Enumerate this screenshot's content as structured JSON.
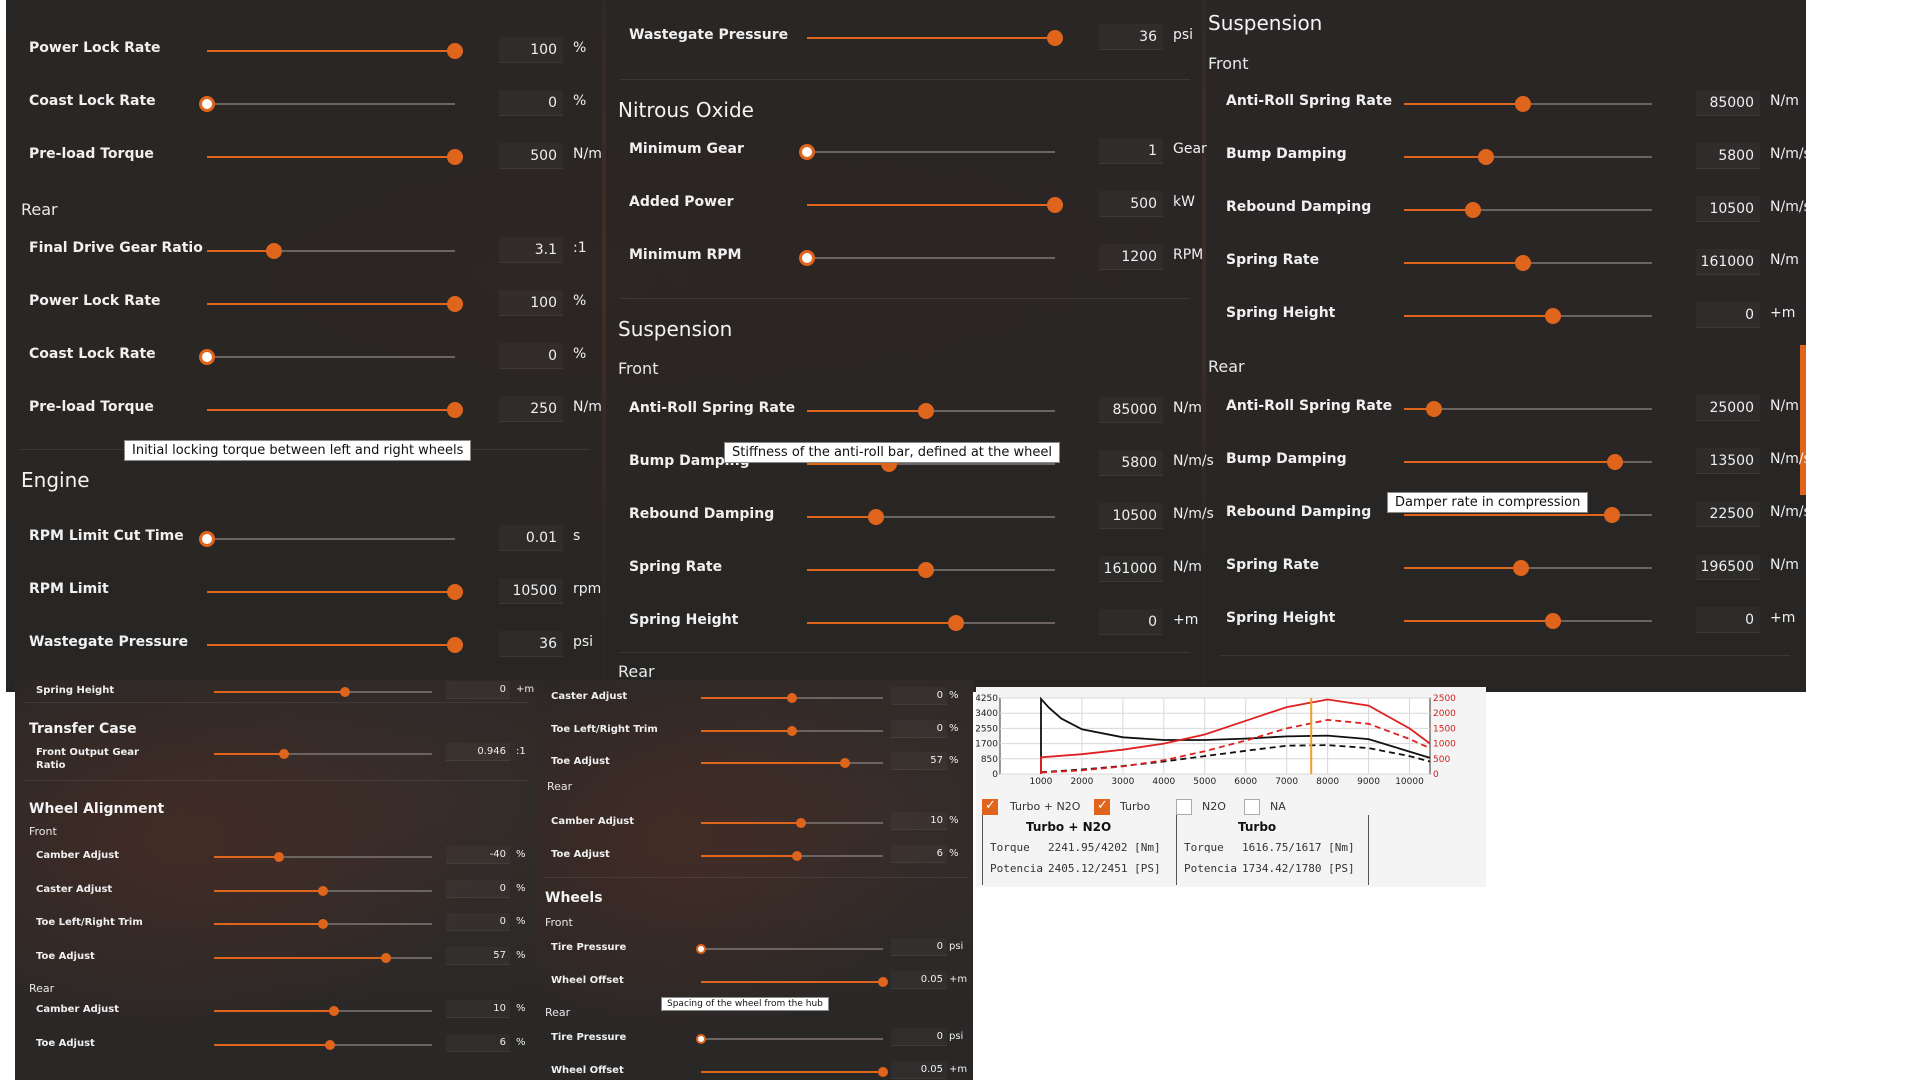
{
  "panel_top": {
    "col1": {
      "rows_a": [
        {
          "label": "Power Lock Rate",
          "value": "100",
          "unit": "%",
          "frac": 1.0
        },
        {
          "label": "Coast Lock Rate",
          "value": "0",
          "unit": "%",
          "frac": 0.0
        },
        {
          "label": "Pre-load Torque",
          "value": "500",
          "unit": "N/m",
          "frac": 1.0
        }
      ],
      "rear_label": "Rear",
      "rows_b": [
        {
          "label": "Final Drive Gear Ratio",
          "value": "3.1",
          "unit": ":1",
          "frac": 0.27
        },
        {
          "label": "Power Lock Rate",
          "value": "100",
          "unit": "%",
          "frac": 1.0
        },
        {
          "label": "Coast Lock Rate",
          "value": "0",
          "unit": "%",
          "frac": 0.0
        },
        {
          "label": "Pre-load Torque",
          "value": "250",
          "unit": "N/m",
          "frac": 1.0
        }
      ],
      "tooltip": "Initial locking torque between left and right wheels",
      "engine_title": "Engine",
      "rows_c": [
        {
          "label": "RPM Limit Cut Time",
          "value": "0.01",
          "unit": "s",
          "frac": 0.0
        },
        {
          "label": "RPM Limit",
          "value": "10500",
          "unit": "rpm",
          "frac": 1.0
        },
        {
          "label": "Wastegate Pressure",
          "value": "36",
          "unit": "psi",
          "frac": 1.0
        }
      ]
    },
    "col2": {
      "row_top": {
        "label": "Wastegate Pressure",
        "value": "36",
        "unit": "psi",
        "frac": 1.0
      },
      "nitrous_title": "Nitrous Oxide",
      "rows_n": [
        {
          "label": "Minimum Gear",
          "value": "1",
          "unit": "Gear",
          "frac": 0.0
        },
        {
          "label": "Added Power",
          "value": "500",
          "unit": "kW",
          "frac": 1.0
        },
        {
          "label": "Minimum RPM",
          "value": "1200",
          "unit": "RPM",
          "frac": 0.0
        }
      ],
      "suspension_title": "Suspension",
      "front_label": "Front",
      "rows_s": [
        {
          "label": "Anti-Roll Spring Rate",
          "value": "85000",
          "unit": "N/m",
          "frac": 0.48
        },
        {
          "label": "Bump Damping",
          "value": "5800",
          "unit": "N/m/s",
          "frac": 0.33
        },
        {
          "label": "Rebound Damping",
          "value": "10500",
          "unit": "N/m/s",
          "frac": 0.28
        },
        {
          "label": "Spring Rate",
          "value": "161000",
          "unit": "N/m",
          "frac": 0.48
        },
        {
          "label": "Spring Height",
          "value": "0",
          "unit": "+m",
          "frac": 0.6
        }
      ],
      "tooltip": "Stiffness of the anti-roll bar, defined at the wheel",
      "rear_label": "Rear"
    },
    "col3": {
      "suspension_title": "Suspension",
      "front_label": "Front",
      "rows_f": [
        {
          "label": "Anti-Roll Spring Rate",
          "value": "85000",
          "unit": "N/m",
          "frac": 0.48
        },
        {
          "label": "Bump Damping",
          "value": "5800",
          "unit": "N/m/s",
          "frac": 0.33
        },
        {
          "label": "Rebound Damping",
          "value": "10500",
          "unit": "N/m/s",
          "frac": 0.28
        },
        {
          "label": "Spring Rate",
          "value": "161000",
          "unit": "N/m",
          "frac": 0.48
        },
        {
          "label": "Spring Height",
          "value": "0",
          "unit": "+m",
          "frac": 0.6
        }
      ],
      "rear_label": "Rear",
      "rows_r": [
        {
          "label": "Anti-Roll Spring Rate",
          "value": "25000",
          "unit": "N/m",
          "frac": 0.12
        },
        {
          "label": "Bump Damping",
          "value": "13500",
          "unit": "N/m/s",
          "frac": 0.85
        },
        {
          "label": "Rebound Damping",
          "value": "22500",
          "unit": "N/m/s",
          "frac": 0.84
        },
        {
          "label": "Spring Rate",
          "value": "196500",
          "unit": "N/m",
          "frac": 0.47
        },
        {
          "label": "Spring Height",
          "value": "0",
          "unit": "+m",
          "frac": 0.6
        }
      ],
      "tooltip": "Damper rate in compression"
    }
  },
  "panel_left": {
    "row_top": {
      "label": "Spring Height",
      "value": "0",
      "unit": "+m",
      "frac": 0.6
    },
    "transfer_title": "Transfer Case",
    "row_tc": {
      "label": "Front Output Gear",
      "label2": "Ratio",
      "value": "0.946",
      "unit": ":1",
      "frac": 0.32
    },
    "wheel_title": "Wheel Alignment",
    "front_label": "Front",
    "rows_f": [
      {
        "label": "Camber Adjust",
        "value": "-40",
        "unit": "%",
        "frac": 0.3
      },
      {
        "label": "Caster Adjust",
        "value": "0",
        "unit": "%",
        "frac": 0.5
      },
      {
        "label": "Toe Left/Right Trim",
        "value": "0",
        "unit": "%",
        "frac": 0.5
      },
      {
        "label": "Toe Adjust",
        "value": "57",
        "unit": "%",
        "frac": 0.79
      }
    ],
    "rear_label": "Rear",
    "rows_r": [
      {
        "label": "Camber Adjust",
        "value": "10",
        "unit": "%",
        "frac": 0.55
      },
      {
        "label": "Toe Adjust",
        "value": "6",
        "unit": "%",
        "frac": 0.53
      }
    ]
  },
  "panel_mid": {
    "rows_a": [
      {
        "label": "Caster Adjust",
        "value": "0",
        "unit": "%",
        "frac": 0.5
      },
      {
        "label": "Toe Left/Right Trim",
        "value": "0",
        "unit": "%",
        "frac": 0.5
      },
      {
        "label": "Toe Adjust",
        "value": "57",
        "unit": "%",
        "frac": 0.79
      }
    ],
    "rear_label": "Rear",
    "rows_b": [
      {
        "label": "Camber Adjust",
        "value": "10",
        "unit": "%",
        "frac": 0.55
      },
      {
        "label": "Toe Adjust",
        "value": "6",
        "unit": "%",
        "frac": 0.53
      }
    ],
    "wheels_title": "Wheels",
    "front_label": "Front",
    "rows_f": [
      {
        "label": "Tire Pressure",
        "value": "0",
        "unit": "psi",
        "frac": 0.0
      },
      {
        "label": "Wheel Offset",
        "value": "0.05",
        "unit": "+m",
        "frac": 1.0
      }
    ],
    "tooltip": "Spacing of the wheel from the hub",
    "rear_label2": "Rear",
    "rows_r": [
      {
        "label": "Tire Pressure",
        "value": "0",
        "unit": "psi",
        "frac": 0.0
      },
      {
        "label": "Wheel Offset",
        "value": "0.05",
        "unit": "+m",
        "frac": 1.0
      }
    ]
  },
  "dyno": {
    "checkboxes": [
      {
        "label": "Turbo + N2O",
        "checked": true
      },
      {
        "label": "Turbo",
        "checked": true
      },
      {
        "label": "N2O",
        "checked": false
      },
      {
        "label": "NA",
        "checked": false
      }
    ],
    "stats": [
      {
        "title": "Turbo + N2O",
        "torque_label": "Torque",
        "torque": "2241.95/4202 [Nm]",
        "power_label": "Potencia",
        "power": "2405.12/2451 [PS]"
      },
      {
        "title": "Turbo",
        "torque_label": "Torque",
        "torque": "1616.75/1617 [Nm]",
        "power_label": "Potencia",
        "power": "1734.42/1780 [PS]"
      }
    ],
    "colors": {
      "primary": "#111111",
      "secondary": "#e02020",
      "marker": "#f0a020"
    }
  },
  "chart_data": {
    "type": "line",
    "x_ticks": [
      "1000",
      "2000",
      "3000",
      "4000",
      "5000",
      "6000",
      "7000",
      "8000",
      "9000",
      "10000"
    ],
    "y_left_ticks": [
      "0",
      "850",
      "1700",
      "2550",
      "3400",
      "4250"
    ],
    "y_right_ticks": [
      "0",
      "500",
      "1000",
      "1500",
      "2000",
      "2500"
    ],
    "xlim": [
      0,
      10500
    ],
    "ylim_left": [
      0,
      4250
    ],
    "ylim_right": [
      0,
      2500
    ],
    "grid": true,
    "marker_x": 7600,
    "series": [
      {
        "axis": "left",
        "style": "solid",
        "color": "#111111",
        "x": [
          1000,
          1000,
          1200,
          1500,
          2000,
          3000,
          4000,
          5000,
          6000,
          7000,
          8000,
          9000,
          10000,
          10500
        ],
        "y": [
          0,
          4202,
          3700,
          3100,
          2500,
          2050,
          1900,
          1900,
          1980,
          2100,
          2150,
          1950,
          1250,
          900
        ]
      },
      {
        "axis": "left",
        "style": "dashed",
        "color": "#111111",
        "x": [
          1000,
          2000,
          3000,
          4000,
          5000,
          6000,
          7000,
          8000,
          9000,
          10000,
          10500
        ],
        "y": [
          100,
          250,
          450,
          700,
          1000,
          1300,
          1580,
          1617,
          1450,
          1000,
          700
        ]
      },
      {
        "axis": "right",
        "style": "solid",
        "color": "#e02020",
        "x": [
          1000,
          1000,
          2000,
          3000,
          4000,
          5000,
          6000,
          7000,
          8000,
          9000,
          10000,
          10500
        ],
        "y": [
          0,
          550,
          650,
          800,
          1000,
          1300,
          1750,
          2200,
          2451,
          2250,
          1500,
          1000
        ]
      },
      {
        "axis": "right",
        "style": "dashed",
        "color": "#e02020",
        "x": [
          1000,
          2000,
          3000,
          4000,
          5000,
          6000,
          7000,
          8000,
          9000,
          10000,
          10500
        ],
        "y": [
          50,
          120,
          250,
          450,
          750,
          1100,
          1500,
          1780,
          1650,
          1150,
          850
        ]
      }
    ]
  }
}
